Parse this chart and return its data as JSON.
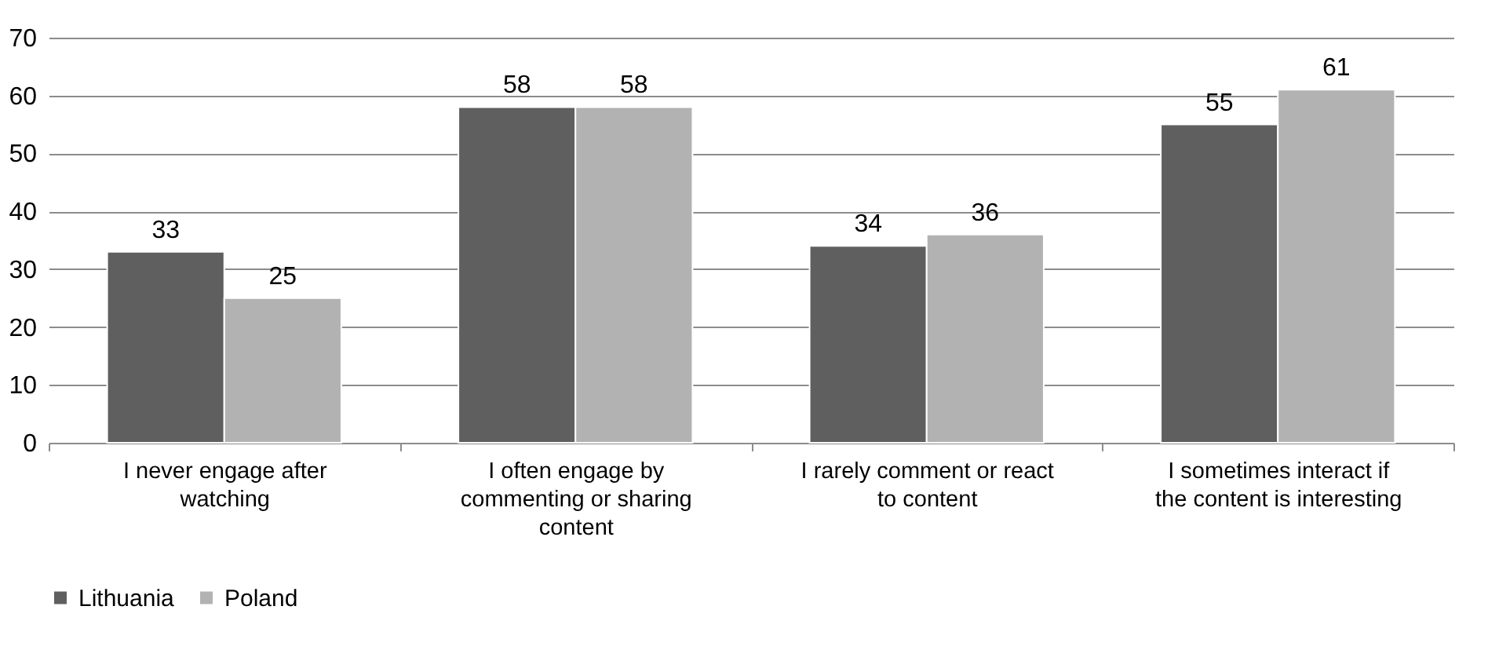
{
  "chart_data": {
    "type": "bar",
    "categories": [
      "I never engage after watching",
      "I often engage by commenting or sharing content",
      "I rarely comment or react to content",
      "I sometimes interact if the content is interesting"
    ],
    "series": [
      {
        "name": "Lithuania",
        "color": "#5f5f5f",
        "values": [
          33,
          58,
          34,
          55
        ]
      },
      {
        "name": "Poland",
        "color": "#b2b2b2",
        "values": [
          25,
          58,
          36,
          61
        ]
      }
    ],
    "ylim": [
      0,
      70
    ],
    "yticks": [
      0,
      10,
      20,
      30,
      40,
      50,
      60,
      70
    ],
    "grid": "y",
    "legend": "bottom",
    "data_labels": true
  }
}
